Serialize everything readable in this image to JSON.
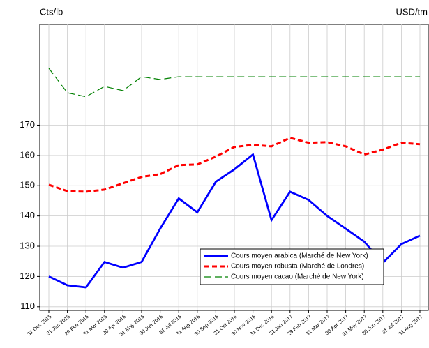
{
  "chart_data": {
    "type": "line",
    "y_axis_label": "Cts/lb",
    "y2_axis_label": "USD/tm",
    "categories": [
      "31 Dec 2015",
      "31 Jan 2016",
      "29 Feb 2016",
      "31 Mar 2016",
      "30 Apr 2016",
      "31 May 2016",
      "30 Jun 2016",
      "31 Jul 2016",
      "31 Aug 2016",
      "30 Sep 2016",
      "31 Oct 2016",
      "30 Nov 2016",
      "31 Dec 2016",
      "31 Jan 2017",
      "28 Feb 2017",
      "31 Mar 2017",
      "30 Apr 2017",
      "31 May 2017",
      "30 Jun 2017",
      "31 Jul 2017",
      "31 Aug 2017"
    ],
    "series": [
      {
        "name": "Cours moyen arabica (Marché de New York)",
        "color": "#0000ff",
        "line_style": "solid",
        "values": [
          120,
          117.1,
          116.4,
          124.8,
          122.9,
          124.8,
          135.8,
          145.8,
          141.2,
          151.3,
          155.4,
          160.3,
          138.6,
          148,
          145.3,
          140,
          135.8,
          131.5,
          124.5,
          130.7,
          133.5
        ]
      },
      {
        "name": "Cours moyen robusta (Marché de Londres)",
        "color": "#ff0000",
        "line_style": "dashed",
        "values": [
          150.3,
          148.2,
          148,
          148.7,
          150.8,
          152.9,
          153.8,
          156.8,
          157,
          159.6,
          162.8,
          163.5,
          163,
          165.8,
          164.2,
          164.4,
          163,
          160.3,
          161.9,
          164.2,
          163.7
        ]
      },
      {
        "name": "Cours moyen cacao (Marché de New York)",
        "color": "#008000",
        "line_style": "long-dashed",
        "values": [
          188.8,
          180.7,
          179.4,
          182.8,
          181.4,
          186,
          185.1,
          186,
          186,
          186,
          186,
          186,
          186,
          186,
          186,
          186,
          186,
          186,
          186,
          186,
          186
        ]
      }
    ],
    "ylim": [
      108.8,
      203.3
    ],
    "yticks": [
      110,
      120,
      130,
      140,
      150,
      160,
      170
    ],
    "grid": true,
    "legend": "lower-right"
  }
}
